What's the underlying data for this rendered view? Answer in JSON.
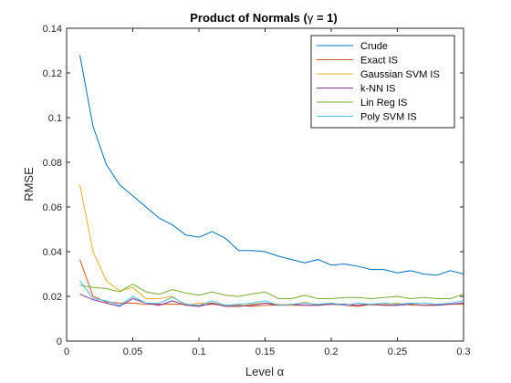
{
  "chart_data": {
    "type": "line",
    "title_prefix": "Product of Normals (",
    "title_symbol": "γ",
    "title_suffix": " = 1)",
    "xlabel_text": "Level ",
    "xlabel_symbol": "α",
    "ylabel": "RMSE",
    "xlim": [
      0,
      0.3
    ],
    "ylim": [
      0,
      0.14
    ],
    "xticks": [
      0,
      0.05,
      0.1,
      0.15,
      0.2,
      0.25,
      0.3
    ],
    "xtick_labels": [
      "0",
      "0.05",
      "0.1",
      "0.15",
      "0.2",
      "0.25",
      "0.3"
    ],
    "yticks": [
      0,
      0.02,
      0.04,
      0.06,
      0.08,
      0.1,
      0.12,
      0.14
    ],
    "ytick_labels": [
      "0",
      "0.02",
      "0.04",
      "0.06",
      "0.08",
      "0.1",
      "0.12",
      "0.14"
    ],
    "legend_position": "top-right",
    "grid": false,
    "x": [
      0.01,
      0.02,
      0.03,
      0.04,
      0.05,
      0.06,
      0.07,
      0.08,
      0.09,
      0.1,
      0.11,
      0.12,
      0.13,
      0.14,
      0.15,
      0.16,
      0.17,
      0.18,
      0.19,
      0.2,
      0.21,
      0.22,
      0.23,
      0.24,
      0.25,
      0.26,
      0.27,
      0.28,
      0.29,
      0.3
    ],
    "series": [
      {
        "name": "Crude",
        "color": "#0072BD",
        "values": [
          0.128,
          0.096,
          0.079,
          0.07,
          0.065,
          0.06,
          0.055,
          0.052,
          0.0475,
          0.0465,
          0.049,
          0.046,
          0.0405,
          0.0405,
          0.04,
          0.038,
          0.0365,
          0.035,
          0.0365,
          0.034,
          0.0345,
          0.0335,
          0.032,
          0.032,
          0.0305,
          0.0315,
          0.03,
          0.0295,
          0.0315,
          0.03
        ]
      },
      {
        "name": "Exact IS",
        "color": "#D95319",
        "values": [
          0.0365,
          0.02,
          0.0175,
          0.017,
          0.017,
          0.0165,
          0.0165,
          0.0165,
          0.0165,
          0.016,
          0.0165,
          0.016,
          0.016,
          0.0155,
          0.016,
          0.016,
          0.016,
          0.016,
          0.016,
          0.0165,
          0.016,
          0.0155,
          0.0165,
          0.016,
          0.016,
          0.0165,
          0.016,
          0.016,
          0.0165,
          0.0165
        ]
      },
      {
        "name": "Gaussian SVM IS",
        "color": "#EDB120",
        "values": [
          0.07,
          0.04,
          0.027,
          0.0225,
          0.024,
          0.019,
          0.019,
          0.02,
          0.016,
          0.017,
          0.017,
          0.016,
          0.0155,
          0.0165,
          0.017,
          0.0165,
          0.016,
          0.0175,
          0.016,
          0.017,
          0.016,
          0.017,
          0.016,
          0.0165,
          0.017,
          0.016,
          0.016,
          0.0165,
          0.0165,
          0.017
        ]
      },
      {
        "name": "k-NN IS",
        "color": "#7E2F8E",
        "values": [
          0.021,
          0.0185,
          0.017,
          0.0155,
          0.019,
          0.017,
          0.016,
          0.018,
          0.016,
          0.0155,
          0.017,
          0.0155,
          0.0155,
          0.016,
          0.017,
          0.016,
          0.0165,
          0.016,
          0.016,
          0.0165,
          0.0165,
          0.016,
          0.0165,
          0.016,
          0.016,
          0.0165,
          0.016,
          0.016,
          0.0165,
          0.017
        ]
      },
      {
        "name": "Lin Reg IS",
        "color": "#77AC30",
        "values": [
          0.025,
          0.024,
          0.0235,
          0.022,
          0.0255,
          0.022,
          0.021,
          0.023,
          0.0215,
          0.0205,
          0.022,
          0.0205,
          0.02,
          0.021,
          0.022,
          0.019,
          0.019,
          0.0205,
          0.019,
          0.019,
          0.0195,
          0.0195,
          0.019,
          0.0195,
          0.02,
          0.019,
          0.0195,
          0.019,
          0.019,
          0.021
        ]
      },
      {
        "name": "Poly SVM IS",
        "color": "#4DBEEE",
        "values": [
          0.027,
          0.019,
          0.018,
          0.016,
          0.02,
          0.017,
          0.017,
          0.0195,
          0.0165,
          0.016,
          0.018,
          0.016,
          0.0165,
          0.017,
          0.018,
          0.016,
          0.0165,
          0.017,
          0.0165,
          0.017,
          0.016,
          0.017,
          0.0165,
          0.017,
          0.0165,
          0.017,
          0.017,
          0.0165,
          0.017,
          0.018
        ]
      }
    ]
  }
}
